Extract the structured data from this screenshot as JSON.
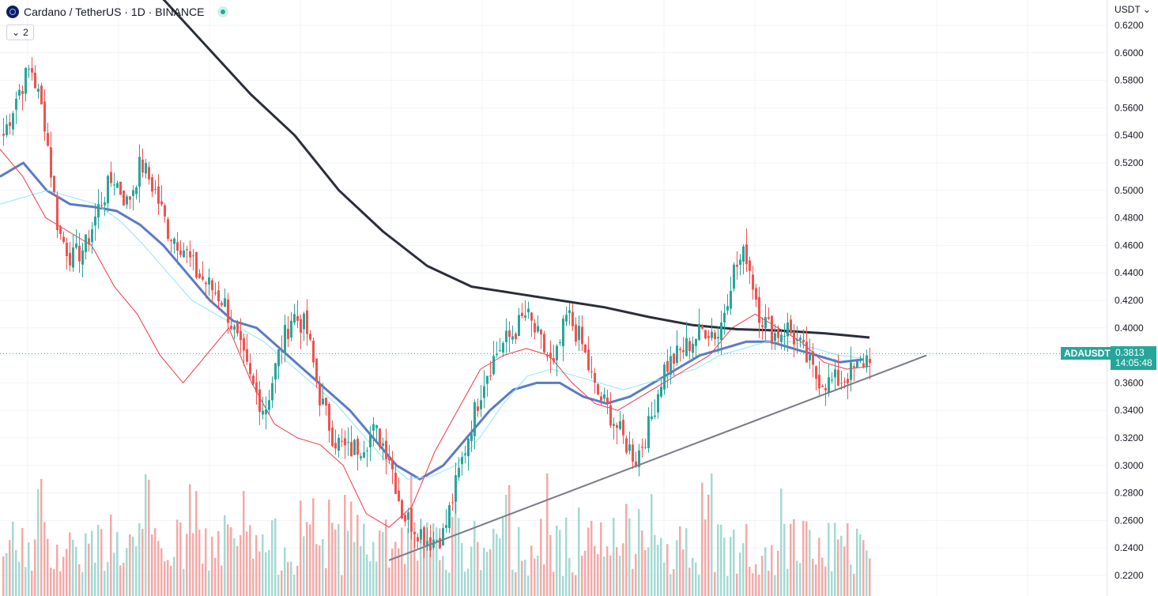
{
  "header": {
    "symbol_title": "Cardano / TetherUS · 1D · BINANCE",
    "indicators_count": "2",
    "currency": "USDT"
  },
  "last_price": {
    "symbol": "ADAUSDT",
    "value": "0.3813",
    "countdown": "14:05:48"
  },
  "colors": {
    "up": "#26a69a",
    "down": "#ef5350",
    "up_volume": "#a5d9d3",
    "down_volume": "#f4a9a7",
    "ma_fast": "#f23645",
    "ma_mid": "#5b7bc4",
    "ma_light": "#8ee8f0",
    "ma_slow": "#2a2e39",
    "trendline": "#787b86"
  },
  "chart_data": {
    "type": "candlestick",
    "y_axis": {
      "ticks": [
        "0.6200",
        "0.6000",
        "0.5800",
        "0.5600",
        "0.5400",
        "0.5200",
        "0.5000",
        "0.4800",
        "0.4600",
        "0.4400",
        "0.4200",
        "0.4000",
        "0.3800",
        "0.3600",
        "0.3400",
        "0.3200",
        "0.3000",
        "0.2800",
        "0.2600",
        "0.2400",
        "0.2200"
      ],
      "range": [
        0.215,
        0.625
      ],
      "scale": "linear"
    },
    "grid": true,
    "price_anchors": [
      0.54,
      0.57,
      0.59,
      0.55,
      0.47,
      0.45,
      0.46,
      0.49,
      0.51,
      0.49,
      0.52,
      0.5,
      0.47,
      0.46,
      0.44,
      0.43,
      0.42,
      0.39,
      0.36,
      0.34,
      0.38,
      0.41,
      0.4,
      0.35,
      0.32,
      0.31,
      0.315,
      0.325,
      0.31,
      0.265,
      0.255,
      0.245,
      0.25,
      0.29,
      0.33,
      0.365,
      0.385,
      0.395,
      0.41,
      0.39,
      0.37,
      0.41,
      0.39,
      0.355,
      0.34,
      0.32,
      0.305,
      0.33,
      0.37,
      0.38,
      0.39,
      0.4,
      0.395,
      0.44,
      0.455,
      0.41,
      0.395,
      0.4,
      0.385,
      0.365,
      0.36,
      0.363,
      0.37,
      0.381
    ],
    "moving_averages": [
      {
        "points": [
          0.51,
          0.52,
          0.5,
          0.49,
          0.488,
          0.485,
          0.475,
          0.46,
          0.44,
          0.42,
          0.405,
          0.4,
          0.385,
          0.37,
          0.355,
          0.34,
          0.32,
          0.3,
          0.29,
          0.3,
          0.32,
          0.34,
          0.355,
          0.36,
          0.36,
          0.35,
          0.345,
          0.35,
          0.36,
          0.37,
          0.38,
          0.385,
          0.39,
          0.39,
          0.385,
          0.38,
          0.375,
          0.377
        ]
      },
      {
        "points": [
          0.49,
          0.495,
          0.5,
          0.495,
          0.49,
          0.478,
          0.46,
          0.44,
          0.42,
          0.41,
          0.4,
          0.39,
          0.375,
          0.36,
          0.345,
          0.325,
          0.305,
          0.29,
          0.292,
          0.3,
          0.32,
          0.345,
          0.365,
          0.37,
          0.365,
          0.36,
          0.355,
          0.36,
          0.365,
          0.37,
          0.38,
          0.385,
          0.39,
          0.39,
          0.385,
          0.38,
          0.378
        ]
      },
      {
        "points": [
          0.53,
          0.51,
          0.48,
          0.47,
          0.46,
          0.43,
          0.41,
          0.38,
          0.36,
          0.38,
          0.4,
          0.36,
          0.33,
          0.32,
          0.315,
          0.3,
          0.265,
          0.255,
          0.27,
          0.31,
          0.34,
          0.37,
          0.38,
          0.385,
          0.38,
          0.36,
          0.345,
          0.34,
          0.35,
          0.36,
          0.37,
          0.38,
          0.4,
          0.41,
          0.4,
          0.39,
          0.375,
          0.37,
          0.372
        ]
      },
      {
        "points": [
          0.64,
          0.605,
          0.57,
          0.54,
          0.5,
          0.47,
          0.445,
          0.43,
          0.425,
          0.42,
          0.415,
          0.408,
          0.402,
          0.399,
          0.398,
          0.396,
          0.393
        ]
      }
    ],
    "trendline": {
      "start": 0.231,
      "end": 0.38
    }
  }
}
